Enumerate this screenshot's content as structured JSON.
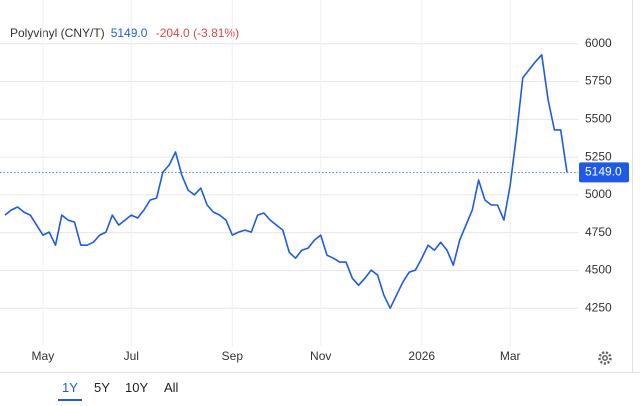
{
  "chart_data": {
    "type": "line",
    "title": "Polyvinyl (CNY/T)",
    "change": "-204.0 (-3.81%)",
    "last_price": {
      "value": 5149,
      "label": "5149.0"
    },
    "categories": [
      null,
      null,
      null,
      null,
      null,
      null,
      "May",
      null,
      null,
      null,
      null,
      null,
      null,
      null,
      null,
      null,
      null,
      null,
      null,
      null,
      "Jul",
      null,
      null,
      null,
      null,
      null,
      null,
      null,
      null,
      null,
      null,
      null,
      null,
      null,
      null,
      null,
      "Sep",
      null,
      null,
      null,
      null,
      null,
      null,
      null,
      null,
      null,
      null,
      null,
      null,
      null,
      "Nov",
      null,
      null,
      null,
      null,
      null,
      null,
      null,
      null,
      null,
      null,
      null,
      null,
      null,
      null,
      null,
      "2026",
      null,
      null,
      null,
      null,
      null,
      null,
      null,
      null,
      null,
      null,
      null,
      null,
      null,
      "Mar",
      null,
      null,
      null,
      null,
      null,
      null,
      null,
      null,
      null
    ],
    "series": [
      {
        "name": "Polyvinyl",
        "color": "#1e5ae6",
        "values": [
          4866,
          4900,
          4920,
          4886,
          4866,
          4800,
          4734,
          4754,
          4667,
          4866,
          4833,
          4820,
          4667,
          4667,
          4687,
          4734,
          4754,
          4866,
          4800,
          4833,
          4866,
          4847,
          4900,
          4966,
          4979,
          5151,
          5198,
          5284,
          5131,
          5032,
          5000,
          5045,
          4933,
          4886,
          4866,
          4833,
          4734,
          4754,
          4767,
          4754,
          4866,
          4880,
          4833,
          4800,
          4767,
          4621,
          4581,
          4634,
          4648,
          4701,
          4734,
          4601,
          4581,
          4555,
          4555,
          4449,
          4402,
          4449,
          4502,
          4469,
          4336,
          4250,
          4336,
          4422,
          4488,
          4502,
          4581,
          4667,
          4634,
          4687,
          4634,
          4535,
          4701,
          4800,
          4900,
          5098,
          4966,
          4933,
          4933,
          4833,
          5065,
          5397,
          5775,
          5828,
          5881,
          5927,
          5629,
          5430,
          5430,
          5149
        ]
      }
    ],
    "ylim": [
      4000,
      6250
    ],
    "yticks": [
      4250,
      4500,
      4750,
      5000,
      5250,
      5500,
      5750,
      6000
    ],
    "grid": true,
    "ranges": [
      "1Y",
      "5Y",
      "10Y",
      "All"
    ],
    "selected_range": 0
  }
}
